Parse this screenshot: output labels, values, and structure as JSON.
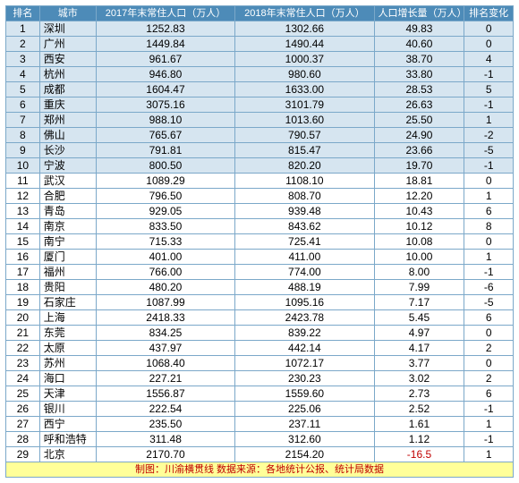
{
  "headers": {
    "rank": "排名",
    "city": "城市",
    "p17": "2017年末常住人口（万人）",
    "p18": "2018年末常住人口（万人）",
    "delta": "人口增长量（万人）",
    "shift": "排名变化"
  },
  "footer": "制图：川渝横贯线 数据来源：各地统计公报、统计局数据",
  "colors": {
    "header_bg": "#4d8bb8",
    "header_fg": "#ffffff",
    "border": "#7ba8c9",
    "alt_row_bg": "#d6e5f0",
    "neg_fg": "#c00000",
    "footer_bg": "#ffff99"
  },
  "rows": [
    {
      "rank": 1,
      "city": "深圳",
      "p17": "1252.83",
      "p18": "1302.66",
      "delta": "49.83",
      "shift": "0"
    },
    {
      "rank": 2,
      "city": "广州",
      "p17": "1449.84",
      "p18": "1490.44",
      "delta": "40.60",
      "shift": "0"
    },
    {
      "rank": 3,
      "city": "西安",
      "p17": "961.67",
      "p18": "1000.37",
      "delta": "38.70",
      "shift": "4"
    },
    {
      "rank": 4,
      "city": "杭州",
      "p17": "946.80",
      "p18": "980.60",
      "delta": "33.80",
      "shift": "-1"
    },
    {
      "rank": 5,
      "city": "成都",
      "p17": "1604.47",
      "p18": "1633.00",
      "delta": "28.53",
      "shift": "5"
    },
    {
      "rank": 6,
      "city": "重庆",
      "p17": "3075.16",
      "p18": "3101.79",
      "delta": "26.63",
      "shift": "-1"
    },
    {
      "rank": 7,
      "city": "郑州",
      "p17": "988.10",
      "p18": "1013.60",
      "delta": "25.50",
      "shift": "1"
    },
    {
      "rank": 8,
      "city": "佛山",
      "p17": "765.67",
      "p18": "790.57",
      "delta": "24.90",
      "shift": "-2"
    },
    {
      "rank": 9,
      "city": "长沙",
      "p17": "791.81",
      "p18": "815.47",
      "delta": "23.66",
      "shift": "-5"
    },
    {
      "rank": 10,
      "city": "宁波",
      "p17": "800.50",
      "p18": "820.20",
      "delta": "19.70",
      "shift": "-1"
    },
    {
      "rank": 11,
      "city": "武汉",
      "p17": "1089.29",
      "p18": "1108.10",
      "delta": "18.81",
      "shift": "0"
    },
    {
      "rank": 12,
      "city": "合肥",
      "p17": "796.50",
      "p18": "808.70",
      "delta": "12.20",
      "shift": "1"
    },
    {
      "rank": 13,
      "city": "青岛",
      "p17": "929.05",
      "p18": "939.48",
      "delta": "10.43",
      "shift": "6"
    },
    {
      "rank": 14,
      "city": "南京",
      "p17": "833.50",
      "p18": "843.62",
      "delta": "10.12",
      "shift": "8"
    },
    {
      "rank": 15,
      "city": "南宁",
      "p17": "715.33",
      "p18": "725.41",
      "delta": "10.08",
      "shift": "0"
    },
    {
      "rank": 16,
      "city": "厦门",
      "p17": "401.00",
      "p18": "411.00",
      "delta": "10.00",
      "shift": "1"
    },
    {
      "rank": 17,
      "city": "福州",
      "p17": "766.00",
      "p18": "774.00",
      "delta": "8.00",
      "shift": "-1"
    },
    {
      "rank": 18,
      "city": "贵阳",
      "p17": "480.20",
      "p18": "488.19",
      "delta": "7.99",
      "shift": "-6"
    },
    {
      "rank": 19,
      "city": "石家庄",
      "p17": "1087.99",
      "p18": "1095.16",
      "delta": "7.17",
      "shift": "-5"
    },
    {
      "rank": 20,
      "city": "上海",
      "p17": "2418.33",
      "p18": "2423.78",
      "delta": "5.45",
      "shift": "6"
    },
    {
      "rank": 21,
      "city": "东莞",
      "p17": "834.25",
      "p18": "839.22",
      "delta": "4.97",
      "shift": "0"
    },
    {
      "rank": 22,
      "city": "太原",
      "p17": "437.97",
      "p18": "442.14",
      "delta": "4.17",
      "shift": "2"
    },
    {
      "rank": 23,
      "city": "苏州",
      "p17": "1068.40",
      "p18": "1072.17",
      "delta": "3.77",
      "shift": "0"
    },
    {
      "rank": 24,
      "city": "海口",
      "p17": "227.21",
      "p18": "230.23",
      "delta": "3.02",
      "shift": "2"
    },
    {
      "rank": 25,
      "city": "天津",
      "p17": "1556.87",
      "p18": "1559.60",
      "delta": "2.73",
      "shift": "6"
    },
    {
      "rank": 26,
      "city": "银川",
      "p17": "222.54",
      "p18": "225.06",
      "delta": "2.52",
      "shift": "-1"
    },
    {
      "rank": 27,
      "city": "西宁",
      "p17": "235.50",
      "p18": "237.11",
      "delta": "1.61",
      "shift": "1"
    },
    {
      "rank": 28,
      "city": "呼和浩特",
      "p17": "311.48",
      "p18": "312.60",
      "delta": "1.12",
      "shift": "-1"
    },
    {
      "rank": 29,
      "city": "北京",
      "p17": "2170.70",
      "p18": "2154.20",
      "delta": "-16.5",
      "shift": "1"
    }
  ]
}
